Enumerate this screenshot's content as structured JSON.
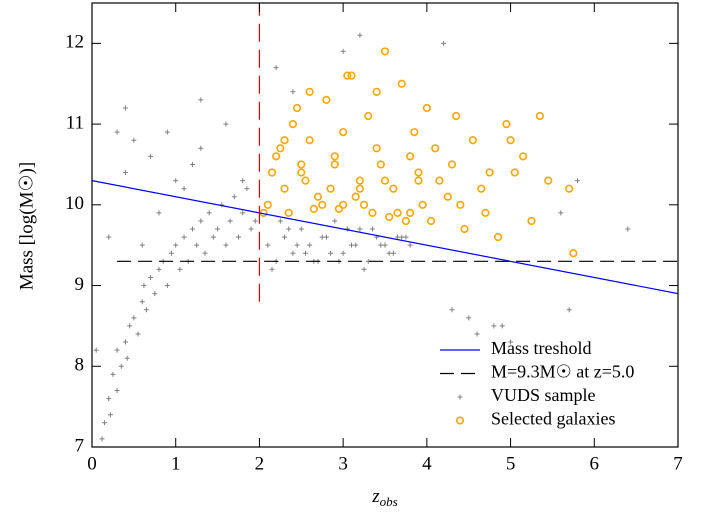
{
  "chart_data": {
    "type": "scatter",
    "x_label": {
      "main": "z",
      "sub": "obs"
    },
    "y_label": "Mass [log(M☉)]",
    "xlim": [
      0,
      7
    ],
    "ylim": [
      7,
      12.5
    ],
    "xticks": [
      0,
      1,
      2,
      3,
      4,
      5,
      6,
      7
    ],
    "yticks": [
      7,
      8,
      9,
      10,
      11,
      12
    ],
    "legend": "lower right",
    "series": [
      {
        "name": "Mass treshold",
        "type": "line",
        "color": "#0000ff",
        "dash": "none",
        "x": [
          0,
          7
        ],
        "y": [
          10.3,
          8.9
        ]
      },
      {
        "name": "M=9.3M☉ at z=5.0",
        "type": "line",
        "color": "#000000",
        "dash": "14 7",
        "x": [
          0.3,
          7
        ],
        "y": [
          9.3,
          9.3
        ]
      },
      {
        "name": "VUDS sample",
        "type": "scatter",
        "marker": "plus",
        "color": "#808080",
        "x": [
          0.12,
          0.15,
          0.2,
          0.22,
          0.25,
          0.3,
          0.3,
          0.35,
          0.4,
          0.42,
          0.45,
          0.5,
          0.55,
          0.6,
          0.62,
          0.65,
          0.7,
          0.75,
          0.8,
          0.85,
          0.9,
          0.95,
          1.0,
          1.05,
          1.1,
          1.15,
          1.2,
          1.25,
          1.3,
          1.35,
          1.4,
          1.45,
          1.5,
          1.55,
          1.6,
          1.65,
          1.7,
          1.75,
          1.8,
          1.85,
          1.9,
          1.95,
          0.6,
          0.8,
          1.0,
          1.2,
          0.4,
          0.5,
          0.7,
          0.9,
          1.1,
          1.3,
          1.6,
          1.8,
          0.05,
          0.2,
          0.3,
          2.1,
          2.2,
          2.3,
          2.4,
          2.5,
          2.6,
          2.7,
          2.8,
          2.9,
          3.0,
          3.1,
          3.2,
          3.3,
          3.4,
          3.5,
          3.6,
          3.7,
          3.8,
          2.15,
          2.35,
          2.55,
          2.75,
          2.95,
          3.15,
          3.35,
          3.55,
          3.75,
          2.25,
          2.45,
          2.65,
          2.85,
          3.05,
          3.25,
          3.45,
          3.65,
          4.3,
          4.5,
          4.6,
          4.8,
          5.0,
          5.6,
          5.7,
          4.2,
          3.2,
          3.0,
          2.4,
          2.2,
          6.4,
          5.8,
          1.3,
          0.4,
          4.9
        ],
        "y": [
          7.1,
          7.3,
          7.6,
          7.4,
          7.9,
          7.7,
          8.2,
          8.0,
          8.3,
          8.1,
          8.5,
          8.6,
          8.4,
          8.8,
          9.0,
          8.7,
          9.1,
          8.9,
          9.2,
          9.3,
          9.0,
          9.4,
          9.5,
          9.2,
          9.6,
          9.3,
          9.7,
          9.5,
          9.8,
          9.4,
          9.9,
          9.6,
          9.7,
          10.0,
          9.5,
          9.8,
          10.1,
          9.6,
          9.9,
          10.2,
          9.7,
          9.8,
          9.5,
          9.9,
          10.3,
          10.5,
          10.4,
          10.8,
          10.6,
          10.9,
          10.2,
          10.7,
          11.0,
          10.3,
          8.2,
          9.6,
          10.9,
          9.5,
          9.3,
          9.6,
          9.4,
          9.7,
          9.5,
          9.3,
          9.6,
          9.8,
          9.4,
          9.5,
          9.7,
          9.3,
          9.6,
          9.5,
          9.4,
          9.6,
          9.5,
          9.2,
          9.7,
          9.4,
          9.6,
          9.3,
          9.5,
          9.7,
          9.4,
          9.6,
          9.8,
          9.5,
          9.3,
          9.4,
          9.7,
          9.2,
          9.5,
          9.6,
          8.7,
          8.6,
          8.4,
          8.5,
          8.3,
          9.9,
          8.7,
          12.0,
          12.1,
          11.9,
          11.4,
          11.7,
          9.7,
          10.3,
          11.3,
          11.2,
          8.5
        ]
      },
      {
        "name": "Selected galaxies",
        "type": "scatter",
        "marker": "circle",
        "color": "#ffa500",
        "x": [
          2.1,
          2.2,
          2.3,
          2.4,
          2.5,
          2.6,
          2.7,
          2.8,
          2.9,
          3.0,
          3.1,
          3.2,
          3.3,
          3.4,
          3.5,
          3.6,
          3.7,
          3.8,
          3.9,
          4.0,
          2.15,
          2.35,
          2.55,
          2.75,
          2.95,
          3.15,
          3.35,
          3.55,
          3.75,
          3.95,
          4.15,
          4.35,
          4.55,
          4.75,
          4.95,
          5.15,
          5.35,
          2.05,
          2.25,
          2.45,
          2.65,
          2.85,
          3.05,
          3.25,
          3.45,
          3.65,
          3.85,
          4.05,
          4.25,
          4.45,
          4.65,
          4.85,
          5.05,
          5.25,
          5.45,
          5.7,
          5.75,
          2.3,
          2.6,
          2.9,
          3.2,
          3.5,
          3.8,
          4.1,
          4.4,
          4.7,
          5.0,
          2.5,
          3.0,
          3.4,
          3.9,
          4.3
        ],
        "y": [
          10.0,
          10.6,
          10.2,
          11.0,
          10.4,
          10.8,
          10.1,
          11.3,
          10.5,
          10.9,
          11.6,
          10.3,
          11.1,
          10.7,
          11.9,
          10.2,
          11.5,
          10.6,
          10.4,
          11.2,
          10.4,
          9.9,
          10.3,
          10.0,
          9.95,
          10.1,
          9.9,
          9.85,
          9.8,
          10.0,
          10.3,
          11.1,
          10.8,
          10.4,
          11.0,
          10.6,
          11.1,
          9.9,
          10.7,
          11.2,
          9.95,
          10.2,
          11.6,
          10.0,
          10.5,
          9.9,
          10.9,
          9.8,
          10.1,
          9.7,
          10.2,
          9.6,
          10.4,
          9.8,
          10.3,
          10.2,
          9.4,
          10.8,
          11.4,
          10.6,
          10.2,
          10.3,
          9.9,
          10.7,
          10.0,
          9.9,
          10.8,
          10.5,
          10.0,
          11.4,
          10.3,
          10.5
        ]
      },
      {
        "type": "line",
        "color": "#dd0000",
        "dash": "18 8",
        "x": [
          2,
          2
        ],
        "y": [
          8.8,
          12.5
        ]
      }
    ]
  }
}
